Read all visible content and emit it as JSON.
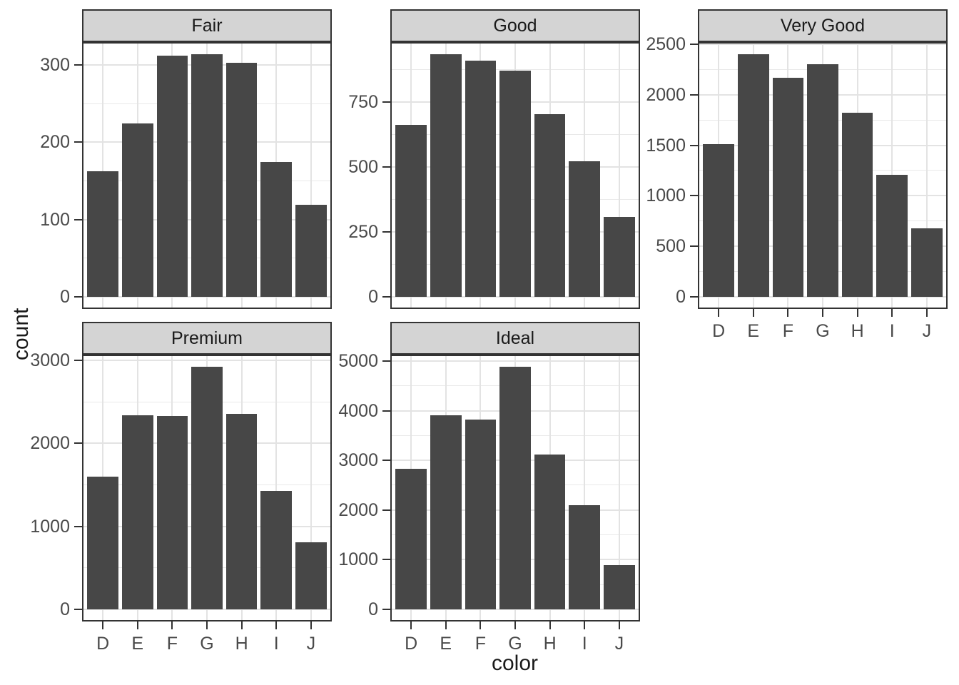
{
  "chart_data": {
    "type": "bar",
    "title": "",
    "xlabel": "color",
    "ylabel": "count",
    "categories": [
      "D",
      "E",
      "F",
      "G",
      "H",
      "I",
      "J"
    ],
    "facets": [
      {
        "title": "Fair",
        "values": [
          163,
          224,
          312,
          314,
          303,
          175,
          119
        ],
        "yticks": [
          0,
          100,
          200,
          300
        ]
      },
      {
        "title": "Good",
        "values": [
          662,
          933,
          909,
          871,
          702,
          522,
          307
        ],
        "yticks": [
          0,
          250,
          500,
          750
        ]
      },
      {
        "title": "Very Good",
        "values": [
          1513,
          2400,
          2164,
          2299,
          1824,
          1204,
          678
        ],
        "yticks": [
          0,
          500,
          1000,
          1500,
          2000,
          2500
        ]
      },
      {
        "title": "Premium",
        "values": [
          1603,
          2337,
          2331,
          2924,
          2360,
          1428,
          808
        ],
        "yticks": [
          0,
          1000,
          2000,
          3000
        ]
      },
      {
        "title": "Ideal",
        "values": [
          2834,
          3903,
          3826,
          4884,
          3115,
          2093,
          896
        ],
        "yticks": [
          0,
          1000,
          2000,
          3000,
          4000,
          5000
        ]
      }
    ],
    "layout_hints": {
      "facet_columns": 3,
      "facet_rows": 2,
      "y_scales": "free",
      "grid": true,
      "legend": false,
      "bar_width_fraction": 0.9,
      "scale_expansion": 0.05
    },
    "colors": {
      "bar_fill": "#474747",
      "strip_background": "#D4D4D4",
      "panel_border": "#333333",
      "grid_major": "#E3E3E3",
      "grid_minor": "#E9E9E9",
      "axis_text": "#4A4A4A",
      "title_text": "#1A1A1A",
      "tick_mark": "#333333"
    }
  }
}
